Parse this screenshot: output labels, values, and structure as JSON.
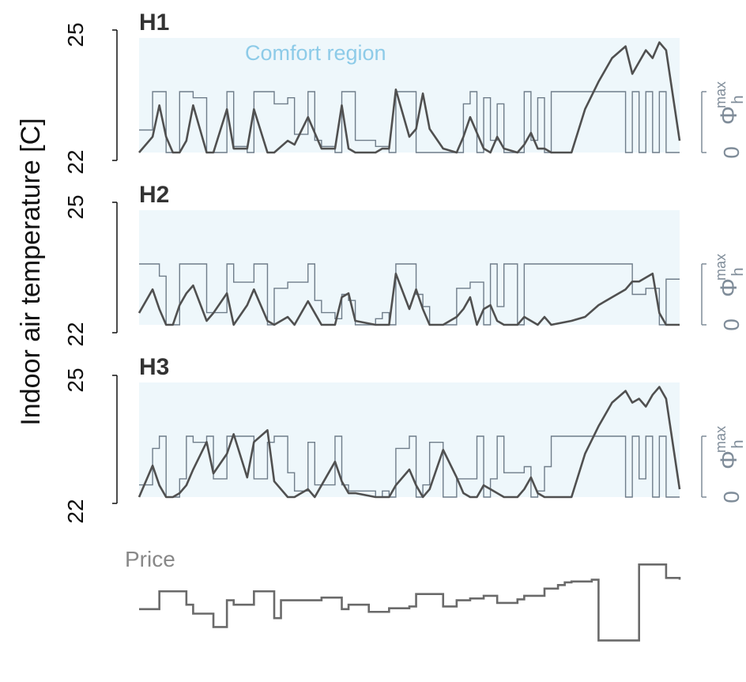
{
  "y_axis_label": "Indoor air temperature [C]",
  "secondary_axis": {
    "label": "Φ",
    "sup": "max",
    "sub": "h",
    "zero": "0"
  },
  "comfort_label": "Comfort region",
  "price_label": "Price",
  "colors": {
    "comfort_fill": "#eef7fb",
    "comfort_text": "#8dcbe8",
    "temperature": "#505050",
    "heat_power": "#6f7d8a",
    "price": "#6a6a6a",
    "secondary_axis": "#7f8c99",
    "axis": "#111111"
  },
  "chart_data": [
    {
      "type": "line",
      "title": "H1",
      "ylabel": "Indoor air temperature [C]",
      "y_ticks": [
        "25",
        "22"
      ],
      "ylim": [
        22,
        25
      ],
      "comfort_range": [
        22,
        24.8
      ],
      "x": [
        0,
        2,
        3,
        4,
        5,
        6,
        7,
        8,
        10,
        11,
        13,
        14,
        16,
        17,
        19,
        20,
        22,
        23,
        25,
        26,
        27,
        29,
        30,
        31,
        32,
        35,
        36,
        37,
        38,
        40,
        41,
        42,
        43,
        45,
        47,
        48,
        49,
        50,
        51,
        52,
        53,
        54,
        56,
        57,
        58,
        59,
        60,
        61,
        64,
        66,
        68,
        70,
        72,
        73,
        74,
        75,
        76,
        77,
        78,
        80
      ],
      "series": [
        {
          "role": "temperature",
          "values": [
            22,
            22.4,
            23.2,
            22.4,
            22,
            22,
            22.3,
            23.2,
            22,
            22,
            23.1,
            22.1,
            22.1,
            23.1,
            22,
            22,
            22.3,
            22.2,
            22.9,
            22.5,
            22.1,
            22.1,
            23.2,
            22.1,
            22,
            22,
            22.1,
            22.1,
            23.6,
            22.4,
            22.6,
            23.5,
            22.6,
            22.1,
            22,
            22.4,
            22.9,
            22.5,
            22.1,
            22,
            22.4,
            22.1,
            22,
            22.2,
            22.5,
            22.1,
            22.1,
            22,
            22,
            23.1,
            23.8,
            24.4,
            24.7,
            24,
            24.3,
            24.6,
            24.4,
            24.8,
            24.6,
            22.3
          ]
        },
        {
          "role": "heat_power",
          "values": [
            0.37,
            1,
            1,
            0,
            0,
            1,
            1,
            0.9,
            0,
            0,
            1,
            0.1,
            0,
            1,
            1,
            0.8,
            0.9,
            0.3,
            1,
            0.2,
            0.1,
            0,
            1,
            1,
            0.2,
            0.1,
            0.1,
            0,
            1,
            1,
            0,
            0,
            0,
            0,
            0,
            0.8,
            1,
            0,
            0.9,
            0.2,
            0.8,
            0,
            0,
            1,
            0.2,
            0.9,
            0,
            1,
            1,
            1,
            1,
            1,
            0,
            1,
            0,
            1,
            0,
            1,
            0,
            0
          ]
        }
      ]
    },
    {
      "type": "line",
      "title": "H2",
      "ylabel": "Indoor air temperature [C]",
      "y_ticks": [
        "25",
        "22"
      ],
      "ylim": [
        22,
        25
      ],
      "comfort_range": [
        22,
        24.8
      ],
      "x": [
        0,
        2,
        3,
        4,
        5,
        6,
        7,
        8,
        10,
        11,
        13,
        14,
        16,
        17,
        19,
        20,
        22,
        23,
        25,
        26,
        27,
        29,
        30,
        31,
        32,
        35,
        36,
        37,
        38,
        40,
        41,
        42,
        43,
        45,
        47,
        48,
        49,
        50,
        51,
        52,
        53,
        54,
        56,
        57,
        58,
        59,
        60,
        61,
        64,
        66,
        68,
        70,
        72,
        73,
        74,
        75,
        76,
        77,
        78,
        80
      ],
      "series": [
        {
          "role": "temperature",
          "values": [
            22.3,
            22.9,
            22.4,
            22,
            22,
            22.5,
            22.8,
            23,
            22.1,
            22.3,
            22.8,
            22,
            22.5,
            22.9,
            22.1,
            22,
            22.2,
            22,
            22.6,
            22.3,
            22,
            22,
            22.7,
            22.8,
            22.1,
            22,
            22,
            22,
            23.3,
            22.4,
            22.9,
            22.4,
            22,
            22,
            22.2,
            22.4,
            22.7,
            22,
            22.4,
            22.5,
            22.1,
            22,
            22,
            22.2,
            22.1,
            22,
            22.2,
            22,
            22.1,
            22.2,
            22.5,
            22.7,
            22.9,
            23.1,
            23.1,
            23.2,
            23.3,
            22.3,
            22,
            22
          ]
        },
        {
          "role": "heat_power",
          "values": [
            1,
            1,
            0.8,
            0,
            0,
            1,
            1,
            1,
            0.2,
            0.2,
            1,
            0.7,
            0.7,
            1,
            0,
            0.6,
            0.7,
            0.7,
            1,
            0.4,
            0.2,
            0.1,
            0.5,
            0.4,
            0,
            0.1,
            0.2,
            0,
            1,
            1,
            0.5,
            0.3,
            0,
            0,
            0.6,
            0.6,
            0.7,
            0.7,
            0,
            1,
            0.3,
            1,
            0,
            1,
            1,
            1,
            1,
            1,
            1,
            1,
            1,
            1,
            1,
            0.5,
            0.5,
            0.6,
            0.6,
            0,
            0.75,
            0.75
          ]
        }
      ]
    },
    {
      "type": "line",
      "title": "H3",
      "ylabel": "Indoor air temperature [C]",
      "y_ticks": [
        "25",
        "22"
      ],
      "ylim": [
        22,
        25
      ],
      "comfort_range": [
        22,
        24.8
      ],
      "x": [
        0,
        2,
        3,
        4,
        5,
        6,
        7,
        8,
        10,
        11,
        13,
        14,
        16,
        17,
        19,
        20,
        22,
        23,
        25,
        26,
        27,
        29,
        30,
        31,
        32,
        35,
        36,
        37,
        38,
        40,
        41,
        42,
        43,
        45,
        47,
        48,
        49,
        50,
        51,
        52,
        53,
        54,
        56,
        57,
        58,
        59,
        60,
        61,
        64,
        66,
        68,
        70,
        72,
        73,
        74,
        75,
        76,
        77,
        78,
        80
      ],
      "series": [
        {
          "role": "temperature",
          "values": [
            22,
            22.8,
            22.3,
            22,
            22,
            22.1,
            22.3,
            22.7,
            23.4,
            22.6,
            23.1,
            23.6,
            22.5,
            23.4,
            23.7,
            22.4,
            22,
            22,
            22.2,
            22,
            22.3,
            22.9,
            22.4,
            22.1,
            22.1,
            22,
            22,
            22,
            22.3,
            22.7,
            22.3,
            22,
            22.2,
            23.2,
            22.5,
            22.1,
            22,
            22,
            22.3,
            22.2,
            22.1,
            22,
            22,
            22.2,
            22.5,
            22.1,
            22,
            22,
            22,
            23.1,
            23.8,
            24.4,
            24.7,
            24.4,
            24.5,
            24.3,
            24.6,
            24.8,
            24.5,
            22.2
          ]
        },
        {
          "role": "heat_power",
          "values": [
            0.2,
            0.8,
            1,
            0,
            0,
            0.3,
            1,
            0.9,
            1,
            0.3,
            1,
            1,
            1,
            0.3,
            0.9,
            1,
            0.4,
            0.1,
            0.9,
            0.2,
            0.2,
            1,
            0.2,
            0.1,
            0.1,
            0,
            0.1,
            0,
            0.8,
            1,
            0,
            0.2,
            0.9,
            0,
            0.3,
            0.3,
            0.3,
            1,
            0,
            0.3,
            1,
            0.4,
            0.4,
            0.5,
            0,
            0.1,
            0.5,
            1,
            1,
            1,
            1,
            1,
            0,
            1,
            0.3,
            1,
            0,
            1,
            0,
            0
          ]
        }
      ]
    },
    {
      "type": "line",
      "title": "Price",
      "x": [
        0,
        3,
        4,
        7,
        8,
        11,
        12,
        13,
        14,
        17,
        18,
        20,
        21,
        24,
        27,
        28,
        30,
        31,
        34,
        36,
        37,
        40,
        41,
        44,
        45,
        47,
        48,
        49,
        51,
        52,
        53,
        56,
        57,
        60,
        62,
        63,
        64,
        67,
        68,
        71,
        72,
        73,
        74,
        77,
        78,
        80
      ],
      "series": [
        {
          "role": "price",
          "values": [
            0.55,
            0.75,
            0.75,
            0.6,
            0.5,
            0.35,
            0.35,
            0.65,
            0.6,
            0.75,
            0.75,
            0.45,
            0.65,
            0.65,
            0.68,
            0.68,
            0.55,
            0.6,
            0.52,
            0.52,
            0.56,
            0.58,
            0.72,
            0.72,
            0.58,
            0.65,
            0.65,
            0.67,
            0.7,
            0.7,
            0.62,
            0.66,
            0.7,
            0.78,
            0.82,
            0.85,
            0.86,
            0.88,
            0.2,
            0.2,
            0.2,
            0.2,
            1.05,
            1.05,
            0.9,
            0.88
          ]
        }
      ]
    }
  ]
}
